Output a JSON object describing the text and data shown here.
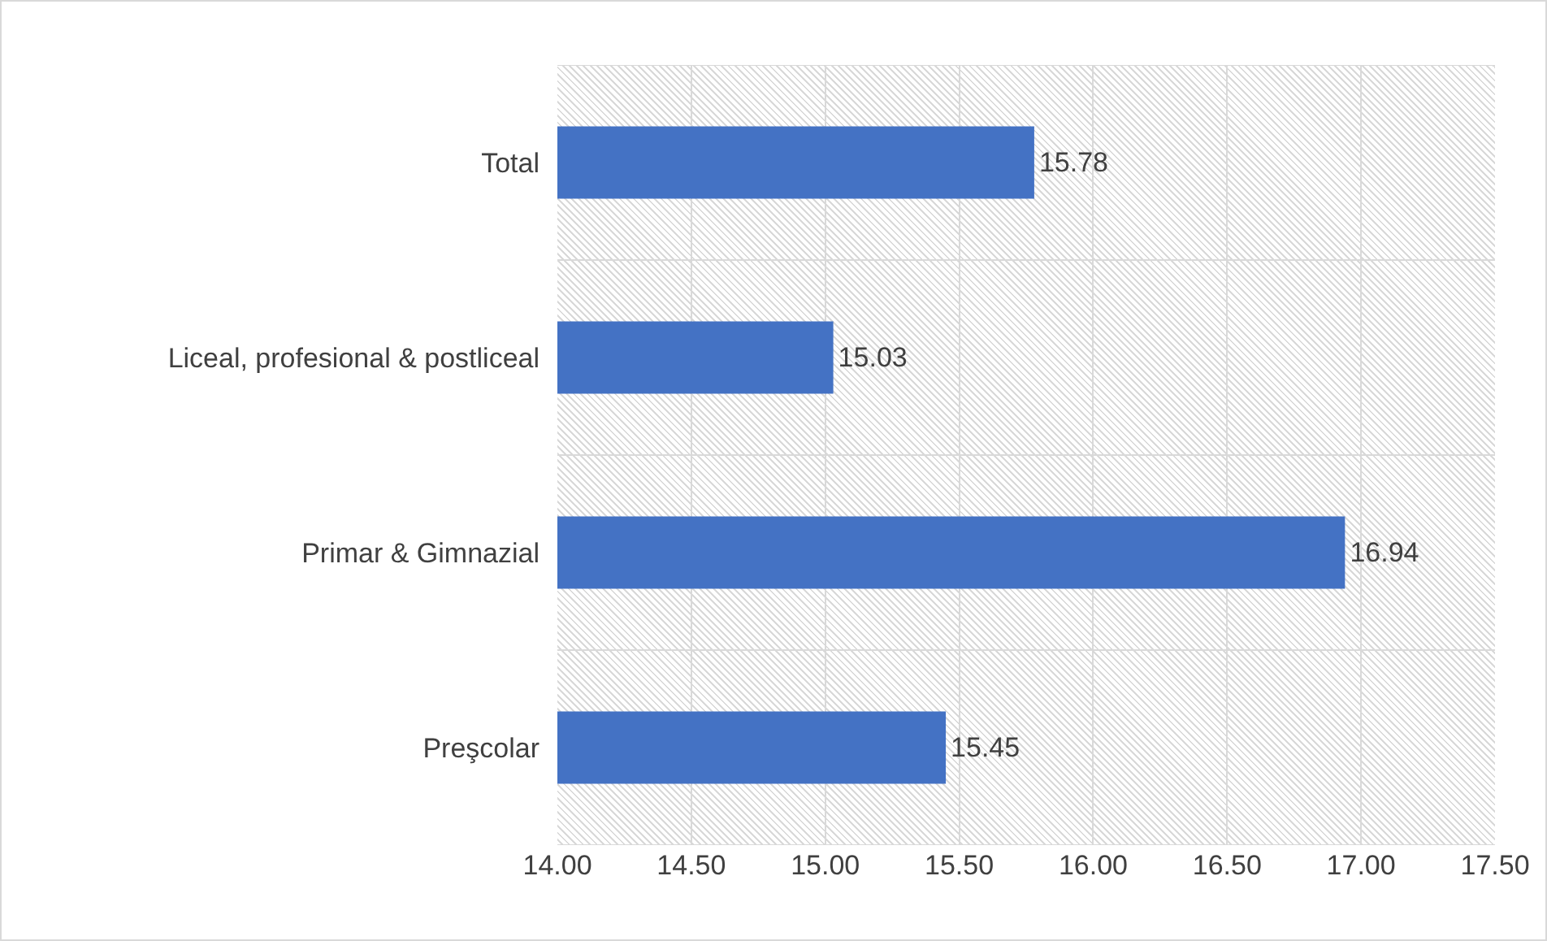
{
  "chart_data": {
    "type": "bar",
    "orientation": "horizontal",
    "categories": [
      "Total",
      "Liceal, profesional & postliceal",
      "Primar & Gimnazial",
      "Preşcolar"
    ],
    "values": [
      15.78,
      15.03,
      16.94,
      15.45
    ],
    "color": "#4472c4",
    "xlim": [
      14,
      17.5
    ],
    "xticks": [
      {
        "value": 14,
        "label": "14.00"
      },
      {
        "value": 14.5,
        "label": "14.50"
      },
      {
        "value": 15,
        "label": "15.00"
      },
      {
        "value": 15.5,
        "label": "15.50"
      },
      {
        "value": 16,
        "label": "16.00"
      },
      {
        "value": 16.5,
        "label": "16.50"
      },
      {
        "value": 17,
        "label": "17.00"
      },
      {
        "value": 17.5,
        "label": "17.50"
      }
    ],
    "grid": true,
    "data_labels": true
  }
}
